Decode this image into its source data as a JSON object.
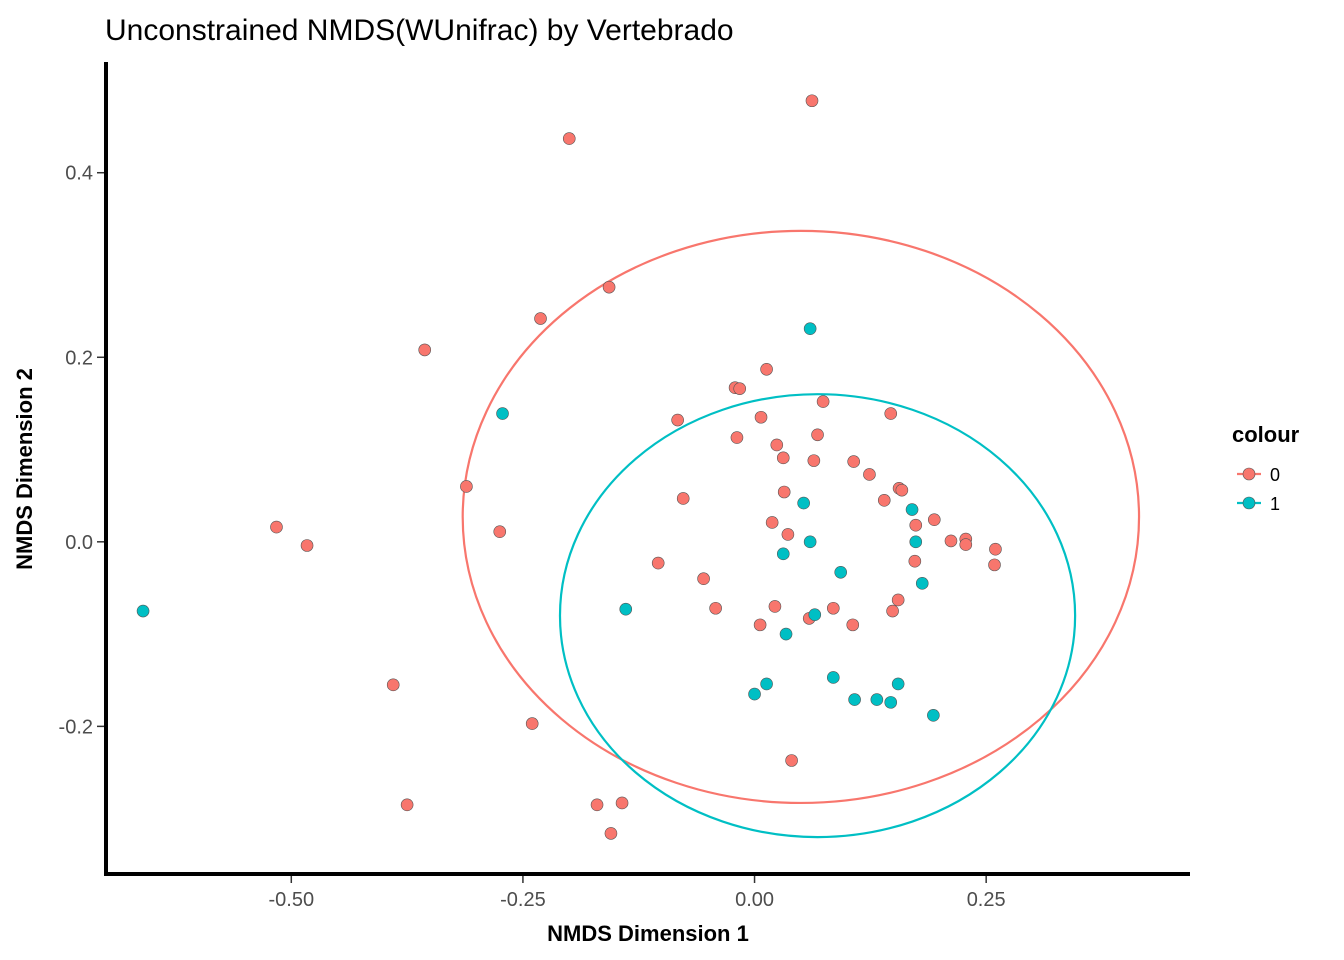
{
  "chart_data": {
    "type": "scatter",
    "title": "Unconstrained NMDS(WUnifrac) by Vertebrado",
    "xlabel": "NMDS Dimension 1",
    "ylabel": "NMDS Dimension 2",
    "xlim": [
      -0.7,
      0.47
    ],
    "ylim": [
      -0.36,
      0.52
    ],
    "xticks": [
      -0.5,
      -0.25,
      0.0,
      0.25
    ],
    "xtick_labels": [
      "-0.50",
      "-0.25",
      "0.00",
      "0.25"
    ],
    "yticks": [
      -0.2,
      0.0,
      0.2,
      0.4
    ],
    "ytick_labels": [
      "-0.2",
      "0.0",
      "0.2",
      "0.4"
    ],
    "grid": false,
    "legend": {
      "title": "colour",
      "position": "right"
    },
    "series": [
      {
        "name": "0",
        "color": "#F8766D",
        "ellipse": {
          "cx": 0.05,
          "cy": 0.027,
          "rx": 0.365,
          "ry": 0.31
        },
        "points": [
          [
            0.062,
            0.478
          ],
          [
            -0.2,
            0.437
          ],
          [
            -0.157,
            0.276
          ],
          [
            -0.231,
            0.242
          ],
          [
            -0.356,
            0.208
          ],
          [
            0.013,
            0.187
          ],
          [
            -0.021,
            0.167
          ],
          [
            -0.016,
            0.166
          ],
          [
            0.074,
            0.152
          ],
          [
            0.147,
            0.139
          ],
          [
            0.007,
            0.135
          ],
          [
            -0.083,
            0.132
          ],
          [
            0.068,
            0.116
          ],
          [
            -0.019,
            0.113
          ],
          [
            0.024,
            0.105
          ],
          [
            0.031,
            0.091
          ],
          [
            0.064,
            0.088
          ],
          [
            0.107,
            0.087
          ],
          [
            0.124,
            0.073
          ],
          [
            -0.311,
            0.06
          ],
          [
            0.156,
            0.058
          ],
          [
            0.159,
            0.056
          ],
          [
            0.032,
            0.054
          ],
          [
            -0.077,
            0.047
          ],
          [
            0.14,
            0.045
          ],
          [
            0.194,
            0.024
          ],
          [
            0.019,
            0.021
          ],
          [
            0.174,
            0.018
          ],
          [
            -0.516,
            0.016
          ],
          [
            -0.275,
            0.011
          ],
          [
            0.036,
            0.008
          ],
          [
            0.212,
            0.001
          ],
          [
            0.228,
            0.003
          ],
          [
            0.228,
            -0.003
          ],
          [
            -0.483,
            -0.004
          ],
          [
            0.26,
            -0.008
          ],
          [
            -0.104,
            -0.023
          ],
          [
            0.173,
            -0.021
          ],
          [
            0.259,
            -0.025
          ],
          [
            -0.055,
            -0.04
          ],
          [
            0.155,
            -0.063
          ],
          [
            0.022,
            -0.07
          ],
          [
            -0.042,
            -0.072
          ],
          [
            0.085,
            -0.072
          ],
          [
            0.149,
            -0.075
          ],
          [
            0.059,
            -0.083
          ],
          [
            0.006,
            -0.09
          ],
          [
            0.106,
            -0.09
          ],
          [
            -0.39,
            -0.155
          ],
          [
            -0.24,
            -0.197
          ],
          [
            0.04,
            -0.237
          ],
          [
            -0.375,
            -0.285
          ],
          [
            -0.17,
            -0.285
          ],
          [
            -0.143,
            -0.283
          ],
          [
            -0.155,
            -0.316
          ]
        ]
      },
      {
        "name": "1",
        "color": "#00BFC4",
        "ellipse": {
          "cx": 0.068,
          "cy": -0.08,
          "rx": 0.278,
          "ry": 0.24
        },
        "points": [
          [
            0.06,
            0.231
          ],
          [
            -0.272,
            0.139
          ],
          [
            0.053,
            0.042
          ],
          [
            0.17,
            0.035
          ],
          [
            0.06,
            0.0
          ],
          [
            0.174,
            0.0
          ],
          [
            0.031,
            -0.013
          ],
          [
            0.093,
            -0.033
          ],
          [
            0.181,
            -0.045
          ],
          [
            -0.139,
            -0.073
          ],
          [
            0.065,
            -0.079
          ],
          [
            0.034,
            -0.1
          ],
          [
            0.085,
            -0.147
          ],
          [
            0.013,
            -0.154
          ],
          [
            0.155,
            -0.154
          ],
          [
            0.0,
            -0.165
          ],
          [
            0.108,
            -0.171
          ],
          [
            0.132,
            -0.171
          ],
          [
            0.147,
            -0.174
          ],
          [
            0.193,
            -0.188
          ],
          [
            -0.66,
            -0.075
          ]
        ]
      }
    ]
  }
}
